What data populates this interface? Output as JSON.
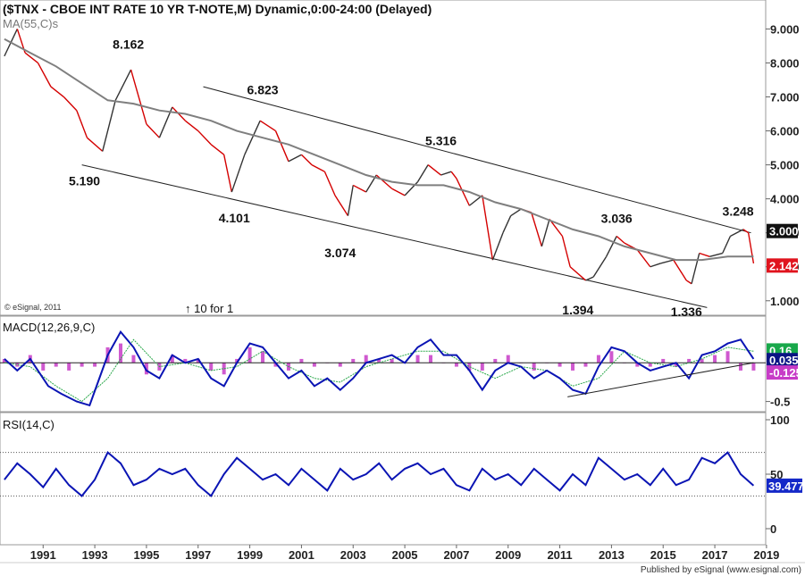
{
  "chart_data": [
    {
      "panel": "price",
      "type": "line",
      "title": "($TNX - CBOE INT RATE 10 YR T-NOTE,M) Dynamic,0:00-24:00 (Delayed)",
      "indicator_label": "MA(55,C)s",
      "copyright": "© eSignal, 2011",
      "split_note": "↑ 10 for 1",
      "ylim": [
        0.6,
        9.8
      ],
      "y_ticks": [
        "1.000",
        "2.000",
        "3.000",
        "4.000",
        "5.000",
        "6.000",
        "7.000",
        "8.000",
        "9.000"
      ],
      "last_value_tag": "2.142",
      "upper_value_tag": "3.000",
      "series": [
        {
          "name": "Yield (monthly close)",
          "x": [
            1990.0,
            1990.5,
            1990.8,
            1991.3,
            1991.8,
            1992.3,
            1992.8,
            1993.2,
            1993.8,
            1994.3,
            1994.9,
            1995.5,
            1996.0,
            1996.5,
            1997.0,
            1997.5,
            1998.0,
            1998.5,
            1998.8,
            1999.3,
            1999.9,
            2000.5,
            2001.0,
            2001.5,
            2001.9,
            2002.4,
            2002.8,
            2003.3,
            2003.5,
            2004.0,
            2004.4,
            2005.0,
            2005.5,
            2006.0,
            2006.4,
            2006.9,
            2007.3,
            2007.5,
            2008.0,
            2008.5,
            2008.9,
            2009.3,
            2009.6,
            2010.0,
            2010.4,
            2010.8,
            2011.1,
            2011.6,
            2011.9,
            2012.5,
            2012.8,
            2013.3,
            2013.7,
            2014.0,
            2014.5,
            2015.0,
            2015.4,
            2015.9,
            2016.4,
            2016.6,
            2016.9,
            2017.3,
            2017.8,
            2018.1,
            2018.6,
            2018.8,
            2019.0
          ],
          "values": [
            8.2,
            9.0,
            8.3,
            8.0,
            7.3,
            7.0,
            6.6,
            5.8,
            5.4,
            6.9,
            7.8,
            6.2,
            5.8,
            6.7,
            6.3,
            6.0,
            5.6,
            5.3,
            4.2,
            5.3,
            6.3,
            6.0,
            5.1,
            5.3,
            5.0,
            4.8,
            4.1,
            3.5,
            4.4,
            4.2,
            4.7,
            4.3,
            4.1,
            4.5,
            5.0,
            4.7,
            4.8,
            4.6,
            3.8,
            4.1,
            2.2,
            3.0,
            3.5,
            3.7,
            3.6,
            2.6,
            3.4,
            2.9,
            2.0,
            1.6,
            1.7,
            2.3,
            2.9,
            2.7,
            2.5,
            2.0,
            2.1,
            2.2,
            1.6,
            1.5,
            2.4,
            2.3,
            2.4,
            2.9,
            3.1,
            3.0,
            2.1
          ]
        },
        {
          "name": "MA(55,C)s",
          "x": [
            1990.0,
            1991.0,
            1992.0,
            1993.0,
            1994.0,
            1995.0,
            1996.0,
            1997.0,
            1998.0,
            1999.0,
            2000.0,
            2001.0,
            2002.0,
            2003.0,
            2004.0,
            2005.0,
            2006.0,
            2007.0,
            2008.0,
            2009.0,
            2010.0,
            2011.0,
            2012.0,
            2013.0,
            2014.0,
            2015.0,
            2016.0,
            2017.0,
            2018.0,
            2019.0
          ],
          "values": [
            8.7,
            8.3,
            7.9,
            7.4,
            6.9,
            6.8,
            6.6,
            6.5,
            6.3,
            6.0,
            5.8,
            5.6,
            5.3,
            5.0,
            4.7,
            4.5,
            4.4,
            4.4,
            4.2,
            3.9,
            3.7,
            3.4,
            3.1,
            2.9,
            2.6,
            2.4,
            2.2,
            2.2,
            2.3,
            2.3
          ]
        }
      ],
      "annotations": [
        {
          "label": "8.162",
          "x": 1994.8,
          "y": 8.162
        },
        {
          "label": "5.190",
          "x": 1993.1,
          "y": 5.19
        },
        {
          "label": "6.823",
          "x": 2000.0,
          "y": 6.823
        },
        {
          "label": "4.101",
          "x": 1998.9,
          "y": 4.101
        },
        {
          "label": "3.074",
          "x": 2003.0,
          "y": 3.074
        },
        {
          "label": "5.316",
          "x": 2006.9,
          "y": 5.316
        },
        {
          "label": "3.036",
          "x": 2013.7,
          "y": 3.036
        },
        {
          "label": "1.394",
          "x": 2012.2,
          "y": 1.394
        },
        {
          "label": "1.336",
          "x": 2016.4,
          "y": 1.336
        },
        {
          "label": "3.248",
          "x": 2018.4,
          "y": 3.248
        }
      ],
      "trendlines": [
        {
          "x": [
            1997.7,
            2018.9
          ],
          "y": [
            7.3,
            3.0
          ]
        },
        {
          "x": [
            1993.0,
            2017.2
          ],
          "y": [
            5.0,
            0.8
          ]
        }
      ]
    },
    {
      "panel": "macd",
      "type": "line",
      "indicator_label": "MACD(12,26,9,C)",
      "ylim": [
        -0.62,
        0.58
      ],
      "y_ticks": [
        "-0.5"
      ],
      "value_tags": [
        "0.16",
        "0.035",
        "-0.125"
      ],
      "series": [
        {
          "name": "MACD",
          "x": [
            1990.0,
            1990.5,
            1991.0,
            1991.7,
            1992.2,
            1992.8,
            1993.3,
            1994.0,
            1994.5,
            1995.0,
            1995.5,
            1996.0,
            1996.5,
            1997.0,
            1997.5,
            1998.0,
            1998.5,
            1999.0,
            1999.5,
            2000.0,
            2000.5,
            2001.0,
            2001.5,
            2002.0,
            2002.5,
            2003.0,
            2003.5,
            2004.0,
            2004.5,
            2005.0,
            2005.5,
            2006.0,
            2006.5,
            2007.0,
            2007.5,
            2008.0,
            2008.5,
            2009.0,
            2009.5,
            2010.0,
            2010.5,
            2011.0,
            2011.5,
            2012.0,
            2012.5,
            2013.0,
            2013.5,
            2014.0,
            2014.5,
            2015.0,
            2015.5,
            2016.0,
            2016.5,
            2017.0,
            2017.5,
            2018.0,
            2018.5,
            2019.0
          ],
          "values": [
            0.05,
            -0.1,
            0.05,
            -0.3,
            -0.4,
            -0.5,
            -0.55,
            0.1,
            0.4,
            0.2,
            -0.1,
            -0.2,
            0.1,
            0.0,
            0.05,
            -0.2,
            -0.3,
            0.0,
            0.25,
            0.2,
            0.0,
            -0.2,
            -0.1,
            -0.3,
            -0.2,
            -0.35,
            -0.2,
            0.0,
            0.05,
            0.1,
            0.0,
            0.2,
            0.3,
            0.1,
            0.1,
            -0.1,
            -0.35,
            -0.1,
            0.0,
            -0.05,
            -0.2,
            -0.1,
            -0.2,
            -0.35,
            -0.4,
            -0.05,
            0.2,
            0.15,
            0.0,
            -0.1,
            -0.05,
            0.0,
            -0.2,
            0.1,
            0.15,
            0.25,
            0.3,
            0.05
          ]
        },
        {
          "name": "Signal",
          "x": [
            1990.0,
            1991.0,
            1992.0,
            1993.0,
            1994.0,
            1995.0,
            1996.0,
            1997.0,
            1998.0,
            1999.0,
            2000.0,
            2001.0,
            2002.0,
            2003.0,
            2004.0,
            2005.0,
            2006.0,
            2007.0,
            2008.0,
            2009.0,
            2010.0,
            2011.0,
            2012.0,
            2013.0,
            2014.0,
            2015.0,
            2016.0,
            2017.0,
            2018.0,
            2019.0
          ],
          "values": [
            0.0,
            -0.05,
            -0.3,
            -0.5,
            -0.2,
            0.3,
            -0.05,
            0.0,
            -0.1,
            -0.05,
            0.15,
            -0.05,
            -0.2,
            -0.25,
            -0.05,
            0.05,
            0.15,
            0.15,
            -0.05,
            -0.2,
            -0.05,
            -0.1,
            -0.3,
            -0.2,
            0.15,
            0.0,
            -0.05,
            0.05,
            0.2,
            0.15
          ]
        }
      ],
      "histogram": {
        "x": [
          1990.0,
          1990.5,
          1991.0,
          1991.5,
          1992.0,
          1992.5,
          1993.0,
          1993.5,
          1994.0,
          1994.5,
          1995.0,
          1995.5,
          1996.0,
          1996.5,
          1997.0,
          1997.5,
          1998.0,
          1998.5,
          1999.0,
          1999.5,
          2000.0,
          2000.5,
          2001.0,
          2001.5,
          2002.0,
          2002.5,
          2003.0,
          2003.5,
          2004.0,
          2004.5,
          2005.0,
          2005.5,
          2006.0,
          2006.5,
          2007.0,
          2007.5,
          2008.0,
          2008.5,
          2009.0,
          2009.5,
          2010.0,
          2010.5,
          2011.0,
          2011.5,
          2012.0,
          2012.5,
          2013.0,
          2013.5,
          2014.0,
          2014.5,
          2015.0,
          2015.5,
          2016.0,
          2016.5,
          2017.0,
          2017.5,
          2018.0,
          2018.5,
          2019.0
        ],
        "values": [
          0.05,
          -0.05,
          0.1,
          -0.1,
          -0.05,
          -0.1,
          -0.05,
          -0.05,
          0.2,
          0.25,
          0.1,
          -0.15,
          -0.1,
          0.1,
          0.05,
          0.05,
          -0.1,
          -0.15,
          0.05,
          0.2,
          0.15,
          -0.05,
          -0.1,
          0.05,
          -0.05,
          0.0,
          -0.05,
          0.05,
          0.1,
          0.05,
          0.05,
          0.0,
          0.1,
          0.1,
          0.0,
          -0.05,
          -0.1,
          -0.1,
          0.05,
          0.1,
          0.0,
          -0.1,
          0.0,
          -0.05,
          -0.1,
          -0.05,
          0.1,
          0.15,
          0.0,
          -0.05,
          -0.05,
          0.05,
          -0.05,
          0.05,
          0.05,
          0.1,
          0.15,
          -0.1,
          -0.1
        ]
      },
      "trendlines": [
        {
          "x": [
            2011.8,
            2019.0
          ],
          "y": [
            -0.44,
            0.0
          ]
        }
      ]
    },
    {
      "panel": "rsi",
      "type": "line",
      "indicator_label": "RSI(14,C)",
      "ylim": [
        0,
        100
      ],
      "y_ticks": [
        "0",
        "50",
        "100"
      ],
      "levels": [
        30,
        70
      ],
      "value_tag": "39.477",
      "series": [
        {
          "name": "RSI(14)",
          "x": [
            1990.0,
            1990.5,
            1991.0,
            1991.5,
            1992.0,
            1992.5,
            1993.0,
            1993.5,
            1994.0,
            1994.5,
            1995.0,
            1995.5,
            1996.0,
            1996.5,
            1997.0,
            1997.5,
            1998.0,
            1998.5,
            1999.0,
            1999.5,
            2000.0,
            2000.5,
            2001.0,
            2001.5,
            2002.0,
            2002.5,
            2003.0,
            2003.5,
            2004.0,
            2004.5,
            2005.0,
            2005.5,
            2006.0,
            2006.5,
            2007.0,
            2007.5,
            2008.0,
            2008.5,
            2009.0,
            2009.5,
            2010.0,
            2010.5,
            2011.0,
            2011.5,
            2012.0,
            2012.5,
            2013.0,
            2013.5,
            2014.0,
            2014.5,
            2015.0,
            2015.5,
            2016.0,
            2016.5,
            2017.0,
            2017.5,
            2018.0,
            2018.5,
            2019.0
          ],
          "values": [
            45,
            60,
            50,
            38,
            55,
            40,
            30,
            45,
            70,
            60,
            40,
            45,
            55,
            50,
            55,
            40,
            30,
            50,
            65,
            55,
            45,
            50,
            40,
            55,
            45,
            35,
            55,
            45,
            50,
            60,
            45,
            55,
            60,
            50,
            55,
            40,
            35,
            55,
            45,
            50,
            40,
            55,
            45,
            35,
            50,
            40,
            65,
            55,
            45,
            50,
            40,
            55,
            40,
            45,
            65,
            60,
            70,
            50,
            39.5
          ]
        }
      ]
    }
  ],
  "x_axis": {
    "ticks": [
      "1991",
      "1993",
      "1995",
      "1997",
      "1999",
      "2001",
      "2003",
      "2005",
      "2007",
      "2009",
      "2011",
      "2013",
      "2015",
      "2017",
      "2019"
    ],
    "range": [
      1989.9,
      2019.4
    ]
  },
  "footer": "Published by eSignal (www.esignal.com)",
  "colors": {
    "price_line": "#333333",
    "price_down": "#d40000",
    "ma_line": "#7f7f7f",
    "macd_line": "#0a14b4",
    "signal_line": "#2aa84a",
    "histogram": "#c73cc7",
    "rsi_line": "#0a14b4",
    "tag_last": "#e0141e",
    "tag_positive": "#18a84a",
    "tag_navy": "#0a1484",
    "tag_negative": "#c73cc7",
    "tag_rsi": "#1428c8"
  }
}
